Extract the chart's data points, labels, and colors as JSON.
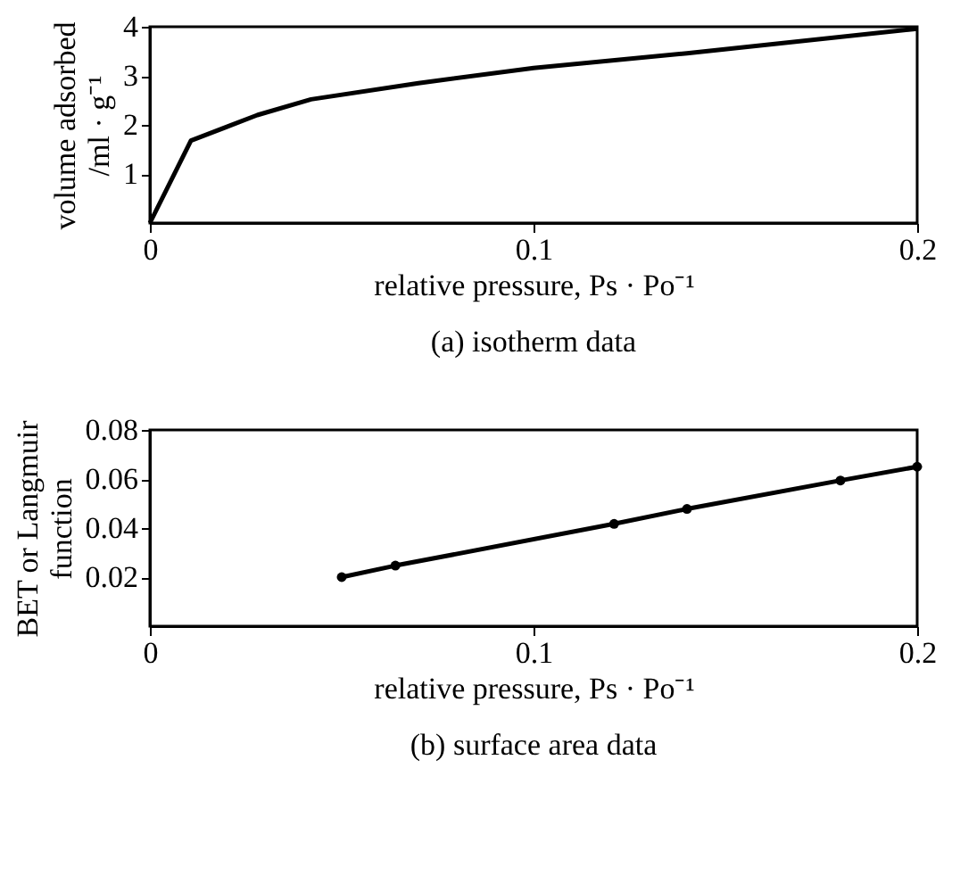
{
  "chart_data": [
    {
      "type": "line",
      "title": "(a)  isotherm data",
      "xlabel": "relative pressure, Ps · Po⁻¹",
      "ylabel": [
        "volume adsorbed",
        "/ml · g⁻¹"
      ],
      "x": [
        0,
        0.0107,
        0.028,
        0.042,
        0.07,
        0.1,
        0.14,
        0.2
      ],
      "values": [
        0,
        1.68,
        2.2,
        2.52,
        2.85,
        3.16,
        3.46,
        3.96
      ],
      "color": "#000000",
      "xlim": [
        0,
        0.2
      ],
      "ylim": [
        0,
        4
      ],
      "xticks": [
        0,
        0.1,
        0.2
      ],
      "yticks": [
        1,
        2,
        3,
        4
      ],
      "marker": "none",
      "line_style": "solid",
      "grid": false
    },
    {
      "type": "line",
      "title": "(b)  surface area data",
      "xlabel": "relative pressure, Ps · Po⁻¹",
      "ylabel": [
        "BET or Langmuir",
        "function"
      ],
      "x": [
        0.05,
        0.064,
        0.121,
        0.14,
        0.18,
        0.2
      ],
      "values": [
        0.02,
        0.0247,
        0.0417,
        0.0478,
        0.0594,
        0.065
      ],
      "color": "#000000",
      "xlim": [
        0,
        0.2
      ],
      "ylim": [
        0,
        0.08
      ],
      "xticks": [
        0,
        0.1,
        0.2
      ],
      "yticks": [
        0.02,
        0.04,
        0.06,
        0.08
      ],
      "marker": "circle",
      "line_style": "solid",
      "grid": false
    }
  ]
}
